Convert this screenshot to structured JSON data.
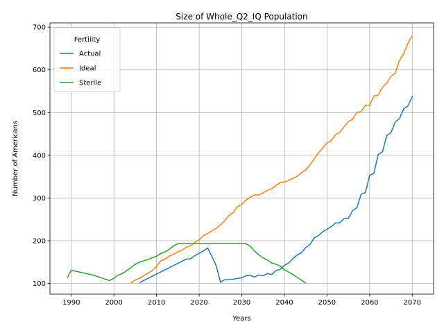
{
  "chart_data": {
    "type": "line",
    "title": "Size of Whole_Q2_IQ Population",
    "xlabel": "Years",
    "ylabel": "Number of Americans",
    "xlim": [
      1985,
      2075
    ],
    "ylim": [
      75,
      710
    ],
    "xticks": [
      1990,
      2000,
      2010,
      2020,
      2030,
      2040,
      2050,
      2060,
      2070
    ],
    "yticks": [
      100,
      200,
      300,
      400,
      500,
      600,
      700
    ],
    "grid": true,
    "legend": {
      "title": "Fertility",
      "placement": "top-left"
    },
    "series": [
      {
        "name": "Actual",
        "color": "#1f77b4",
        "x": [
          2006,
          2008,
          2010,
          2012,
          2014,
          2016,
          2017,
          2018,
          2019,
          2020,
          2021,
          2022,
          2023,
          2024,
          2025,
          2026,
          2027,
          2028,
          2029,
          2030,
          2031,
          2032,
          2033,
          2034,
          2035,
          2036,
          2037,
          2038,
          2039,
          2040,
          2041,
          2042,
          2043,
          2044,
          2045,
          2046,
          2047,
          2048,
          2049,
          2050,
          2051,
          2052,
          2053,
          2054,
          2055,
          2056,
          2057,
          2058,
          2059,
          2060,
          2061,
          2062,
          2063,
          2064,
          2065,
          2066,
          2067,
          2068,
          2069,
          2070
        ],
        "y": [
          102,
          112,
          122,
          132,
          142,
          152,
          157,
          158,
          165,
          171,
          176,
          183,
          163,
          142,
          103,
          109,
          109,
          110,
          112,
          113,
          118,
          119,
          115,
          120,
          118,
          123,
          121,
          130,
          133,
          142,
          148,
          158,
          167,
          172,
          184,
          191,
          207,
          212,
          221,
          227,
          233,
          242,
          242,
          252,
          252,
          271,
          277,
          309,
          313,
          353,
          358,
          402,
          408,
          446,
          453,
          478,
          486,
          509,
          516,
          538
        ]
      },
      {
        "name": "Ideal",
        "color": "#ff7f0e",
        "x": [
          2004,
          2005,
          2006,
          2007,
          2008,
          2009,
          2010,
          2011,
          2012,
          2013,
          2014,
          2015,
          2016,
          2017,
          2018,
          2019,
          2020,
          2021,
          2022,
          2023,
          2024,
          2025,
          2026,
          2027,
          2028,
          2029,
          2030,
          2031,
          2032,
          2033,
          2034,
          2035,
          2036,
          2037,
          2038,
          2039,
          2040,
          2041,
          2042,
          2043,
          2044,
          2045,
          2046,
          2047,
          2048,
          2049,
          2050,
          2051,
          2052,
          2053,
          2054,
          2055,
          2056,
          2057,
          2058,
          2059,
          2060,
          2061,
          2062,
          2063,
          2064,
          2065,
          2066,
          2067,
          2068,
          2069,
          2070
        ],
        "y": [
          101,
          108,
          112,
          118,
          124,
          130,
          140,
          153,
          157,
          164,
          168,
          174,
          178,
          185,
          188,
          196,
          202,
          212,
          217,
          223,
          229,
          237,
          247,
          259,
          266,
          280,
          285,
          295,
          302,
          307,
          307,
          312,
          318,
          322,
          329,
          336,
          337,
          341,
          346,
          351,
          359,
          366,
          377,
          392,
          406,
          417,
          429,
          434,
          448,
          454,
          467,
          479,
          484,
          501,
          502,
          517,
          516,
          539,
          541,
          559,
          569,
          585,
          592,
          622,
          638,
          663,
          680
        ]
      },
      {
        "name": "Sterile",
        "color": "#2ca02c",
        "x": [
          1989,
          1990,
          1995,
          1999,
          2000,
          2001,
          2002,
          2003,
          2004,
          2005,
          2006,
          2008,
          2010,
          2011,
          2012,
          2013,
          2014,
          2015,
          2020,
          2025,
          2030,
          2031,
          2032,
          2033,
          2034,
          2035,
          2036,
          2037,
          2038,
          2039,
          2040,
          2042,
          2044,
          2045
        ],
        "y": [
          113,
          131,
          120,
          107,
          112,
          120,
          123,
          130,
          137,
          145,
          150,
          156,
          164,
          170,
          174,
          180,
          188,
          193,
          193,
          193,
          193,
          193,
          187,
          176,
          167,
          160,
          155,
          148,
          145,
          141,
          132,
          121,
          108,
          101
        ]
      }
    ]
  }
}
